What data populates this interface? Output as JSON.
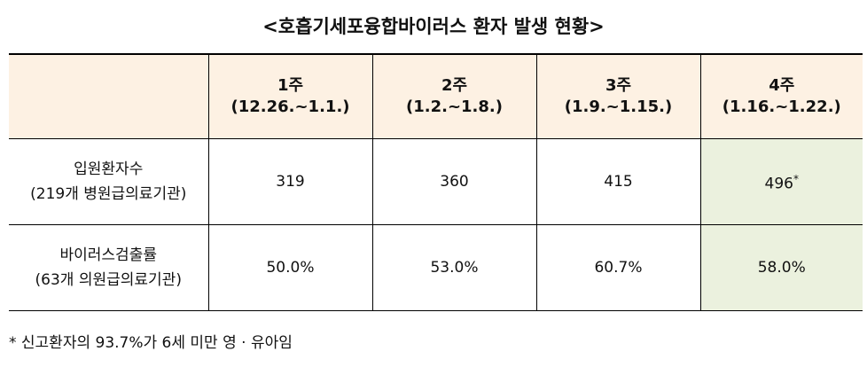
{
  "title": "<호흡기세포융합바이러스 환자 발생 현황>",
  "table": {
    "header": [
      {
        "week": "1주",
        "period": "(12.26.~1.1.)"
      },
      {
        "week": "2주",
        "period": "(1.2.~1.8.)"
      },
      {
        "week": "3주",
        "period": "(1.9.~1.15.)"
      },
      {
        "week": "4주",
        "period": "(1.16.~1.22.)"
      }
    ],
    "rows": [
      {
        "label": "입원환자수",
        "sublabel": "(219개 병원급의료기관)",
        "cells": [
          "319",
          "360",
          "415",
          "496"
        ],
        "last_cell_mark": "*"
      },
      {
        "label": "바이러스검출률",
        "sublabel": "(63개 의원급의료기관)",
        "cells": [
          "50.0%",
          "53.0%",
          "60.7%",
          "58.0%"
        ]
      }
    ]
  },
  "footnote": "* 신고환자의 93.7%가 6세 미만 영 · 유아임"
}
